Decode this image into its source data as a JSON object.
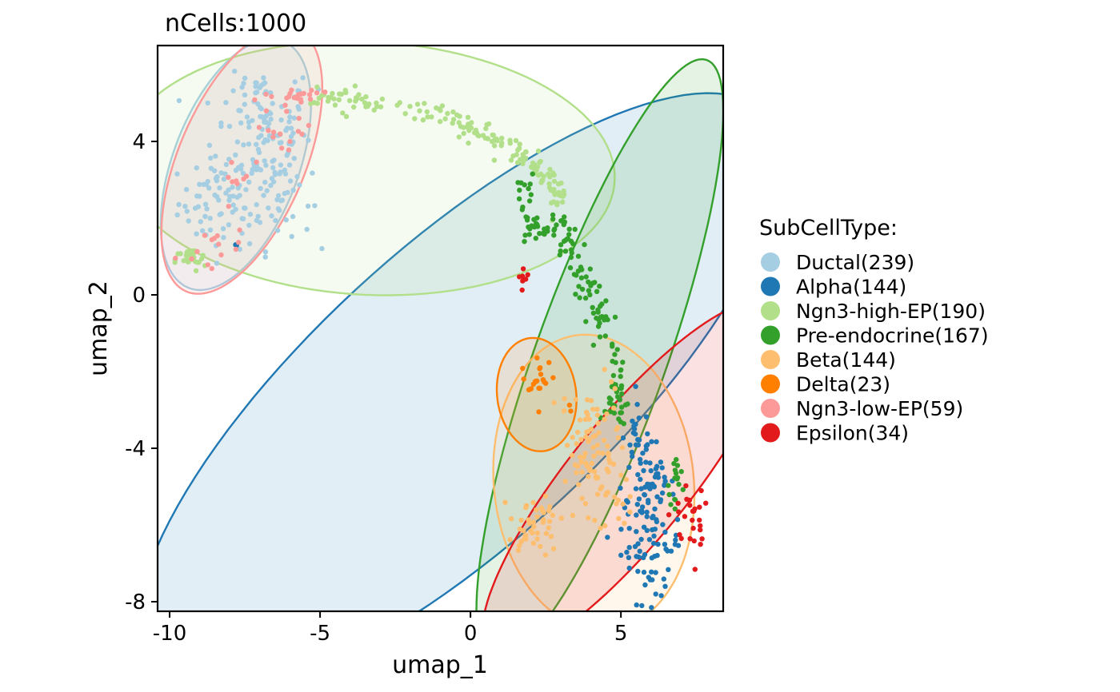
{
  "chart_data": {
    "type": "scatter",
    "title": "nCells:1000",
    "xlabel": "umap_1",
    "ylabel": "umap_2",
    "xlim": [
      -10.4,
      8.4
    ],
    "ylim": [
      -8.25,
      6.5
    ],
    "x_ticks": [
      -10,
      -5,
      0,
      5
    ],
    "x_tick_labels": [
      "-10",
      "-5",
      "0",
      "5"
    ],
    "y_ticks": [
      4,
      0,
      -4,
      -8
    ],
    "y_tick_labels": [
      "4",
      "0",
      "-4",
      "-8"
    ],
    "grid": false,
    "legend": {
      "title": "SubCellType:",
      "position": "right",
      "entries": [
        {
          "label": "Ductal(239)",
          "color": "#a6cee3"
        },
        {
          "label": "Alpha(144)",
          "color": "#1f78b4"
        },
        {
          "label": "Ngn3-high-EP(190)",
          "color": "#b2df8a"
        },
        {
          "label": "Pre-endocrine(167)",
          "color": "#33a02c"
        },
        {
          "label": "Beta(144)",
          "color": "#fdbf6f"
        },
        {
          "label": "Delta(23)",
          "color": "#ff7f00"
        },
        {
          "label": "Ngn3-low-EP(59)",
          "color": "#fb9a99"
        },
        {
          "label": "Epsilon(34)",
          "color": "#e31a1c"
        }
      ]
    },
    "series": [
      {
        "name": "Ductal",
        "count": 239,
        "color": "#a6cee3",
        "ellipse": {
          "cx": -7.8,
          "cy": 3.4,
          "rx": 3.6,
          "ry": 2.0,
          "angle": 60
        }
      },
      {
        "name": "Alpha",
        "count": 144,
        "color": "#1f78b4",
        "ellipse": {
          "cx": -0.4,
          "cy": -2.6,
          "rx": 12.6,
          "ry": 4.2,
          "angle": 34
        }
      },
      {
        "name": "Ngn3-high-EP",
        "count": 190,
        "color": "#b2df8a",
        "ellipse": {
          "cx": -3.4,
          "cy": 3.3,
          "rx": 8.2,
          "ry": 3.3,
          "angle": -2
        }
      },
      {
        "name": "Pre-endocrine",
        "count": 167,
        "color": "#33a02c",
        "ellipse": {
          "cx": 4.3,
          "cy": -1.7,
          "rx": 8.6,
          "ry": 2.1,
          "angle": 65
        }
      },
      {
        "name": "Beta",
        "count": 144,
        "color": "#fdbf6f",
        "ellipse": {
          "cx": 4.1,
          "cy": -4.9,
          "rx": 3.3,
          "ry": 3.9,
          "angle": 15
        }
      },
      {
        "name": "Delta",
        "count": 23,
        "color": "#ff7f00",
        "ellipse": {
          "cx": 2.2,
          "cy": -2.6,
          "rx": 1.3,
          "ry": 1.5,
          "angle": 20
        }
      },
      {
        "name": "Ngn3-low-EP",
        "count": 59,
        "color": "#fb9a99",
        "ellipse": {
          "cx": -7.6,
          "cy": 3.5,
          "rx": 3.9,
          "ry": 2.0,
          "angle": 58
        }
      },
      {
        "name": "Epsilon",
        "count": 34,
        "color": "#e31a1c",
        "ellipse": {
          "cx": 5.3,
          "cy": -4.8,
          "rx": 6.5,
          "ry": 1.8,
          "angle": 43
        }
      }
    ],
    "point_clouds": [
      {
        "series": 0,
        "clusters": [
          {
            "x": -8.2,
            "y": 2.4,
            "sx": 0.75,
            "sy": 0.6,
            "n": 80
          },
          {
            "x": -6.9,
            "y": 4.2,
            "sx": 0.8,
            "sy": 0.75,
            "n": 100
          },
          {
            "x": -6.3,
            "y": 2.6,
            "sx": 0.5,
            "sy": 0.7,
            "n": 40
          },
          {
            "x": -7.0,
            "y": 5.4,
            "sx": 0.7,
            "sy": 0.15,
            "n": 19
          }
        ]
      },
      {
        "series": 1,
        "clusters": [
          {
            "x": 6.0,
            "y": -6.5,
            "sx": 0.5,
            "sy": 0.75,
            "n": 70
          },
          {
            "x": 5.9,
            "y": -5.0,
            "sx": 0.45,
            "sy": 0.6,
            "n": 50
          },
          {
            "x": 5.6,
            "y": -3.7,
            "sx": 0.25,
            "sy": 0.4,
            "n": 22
          },
          {
            "x": -7.8,
            "y": 1.3,
            "sx": 0.05,
            "sy": 0.05,
            "n": 2
          }
        ]
      },
      {
        "series": 2,
        "path": [
          [
            -5.0,
            5.1
          ],
          [
            -3.6,
            5.0
          ],
          [
            -1.8,
            4.8
          ],
          [
            -0.5,
            4.5
          ],
          [
            0.8,
            4.0
          ],
          [
            1.8,
            3.6
          ],
          [
            2.6,
            3.0
          ],
          [
            3.0,
            2.4
          ]
        ],
        "spread": 0.18,
        "n": 160
      },
      {
        "series": 2,
        "clusters": [
          {
            "x": -9.3,
            "y": 0.9,
            "sx": 0.25,
            "sy": 0.15,
            "n": 30
          }
        ]
      },
      {
        "series": 3,
        "path": [
          [
            1.8,
            2.8
          ],
          [
            2.0,
            1.6
          ],
          [
            3.0,
            1.8
          ],
          [
            3.5,
            0.9
          ],
          [
            4.0,
            0.2
          ],
          [
            4.4,
            -0.8
          ],
          [
            4.8,
            -1.7
          ],
          [
            5.0,
            -2.7
          ],
          [
            4.8,
            -3.2
          ]
        ],
        "spread": 0.2,
        "n": 150
      },
      {
        "series": 3,
        "clusters": [
          {
            "x": 6.8,
            "y": -4.9,
            "sx": 0.15,
            "sy": 0.35,
            "n": 17
          }
        ]
      },
      {
        "series": 4,
        "clusters": [
          {
            "x": 4.0,
            "y": -4.0,
            "sx": 0.55,
            "sy": 0.9,
            "n": 90
          },
          {
            "x": 2.2,
            "y": -6.0,
            "sx": 0.4,
            "sy": 0.35,
            "n": 44
          },
          {
            "x": 4.8,
            "y": -5.5,
            "sx": 0.3,
            "sy": 0.3,
            "n": 10
          }
        ]
      },
      {
        "series": 5,
        "clusters": [
          {
            "x": 2.2,
            "y": -2.3,
            "sx": 0.25,
            "sy": 0.25,
            "n": 21
          },
          {
            "x": 3.3,
            "y": -2.9,
            "sx": 0.1,
            "sy": 0.1,
            "n": 2
          }
        ]
      },
      {
        "series": 6,
        "clusters": [
          {
            "x": -5.6,
            "y": 5.2,
            "sx": 0.5,
            "sy": 0.15,
            "n": 22
          },
          {
            "x": -6.5,
            "y": 4.1,
            "sx": 0.5,
            "sy": 0.4,
            "n": 15
          },
          {
            "x": -8.5,
            "y": 1.2,
            "sx": 0.5,
            "sy": 0.3,
            "n": 14
          },
          {
            "x": -7.9,
            "y": 3.2,
            "sx": 0.3,
            "sy": 0.4,
            "n": 8
          }
        ]
      },
      {
        "series": 7,
        "clusters": [
          {
            "x": 7.3,
            "y": -5.6,
            "sx": 0.25,
            "sy": 0.55,
            "n": 26
          },
          {
            "x": 1.8,
            "y": 0.5,
            "sx": 0.1,
            "sy": 0.1,
            "n": 8
          }
        ]
      }
    ]
  }
}
